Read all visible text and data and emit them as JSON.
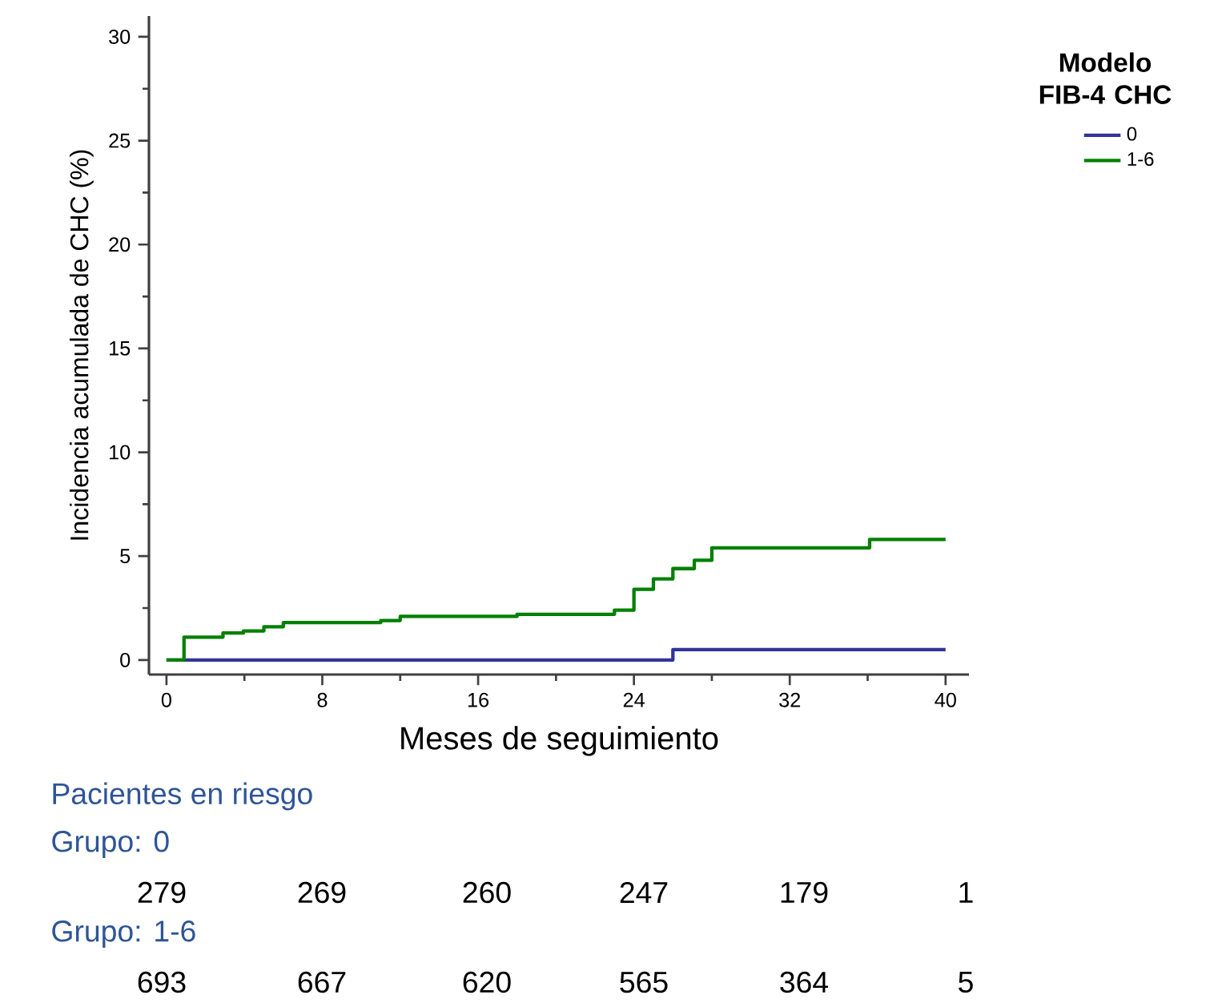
{
  "chart_data": {
    "type": "step",
    "xlabel": "Meses de seguimiento",
    "ylabel": "Incidencia acumulada de CHC (%)",
    "legend_title": "Modelo FIB-4 CHC",
    "series": [
      {
        "name": "0",
        "color": "#333399",
        "x": [
          0,
          26.0,
          40
        ],
        "values": [
          0,
          0.5,
          0.5
        ]
      },
      {
        "name": "1-6",
        "color": "#008000",
        "x": [
          0,
          0.9,
          2.9,
          3.95,
          5.0,
          6.0,
          11.0,
          12.0,
          18.0,
          23.0,
          24.0,
          25.0,
          26.0,
          27.1,
          28.0,
          36.1,
          40
        ],
        "values": [
          0,
          1.1,
          1.3,
          1.4,
          1.6,
          1.8,
          1.9,
          2.1,
          2.2,
          2.4,
          3.4,
          3.9,
          4.4,
          4.8,
          5.4,
          5.8,
          5.8
        ]
      }
    ],
    "xlim": [
      -0.9,
      41.2
    ],
    "ylim": [
      -0.7,
      31
    ],
    "xticks": [
      0,
      8,
      16,
      24,
      32,
      40
    ],
    "yticks": [
      0,
      5,
      10,
      15,
      20,
      25,
      30
    ],
    "legend": "top right",
    "annotations": [
      "Pacientes en riesgo",
      "Grupo: 0",
      "279",
      "269",
      "260",
      "247",
      "179",
      "1",
      "Grupo: 1-6",
      "693",
      "667",
      "620",
      "565",
      "364",
      "5"
    ]
  }
}
